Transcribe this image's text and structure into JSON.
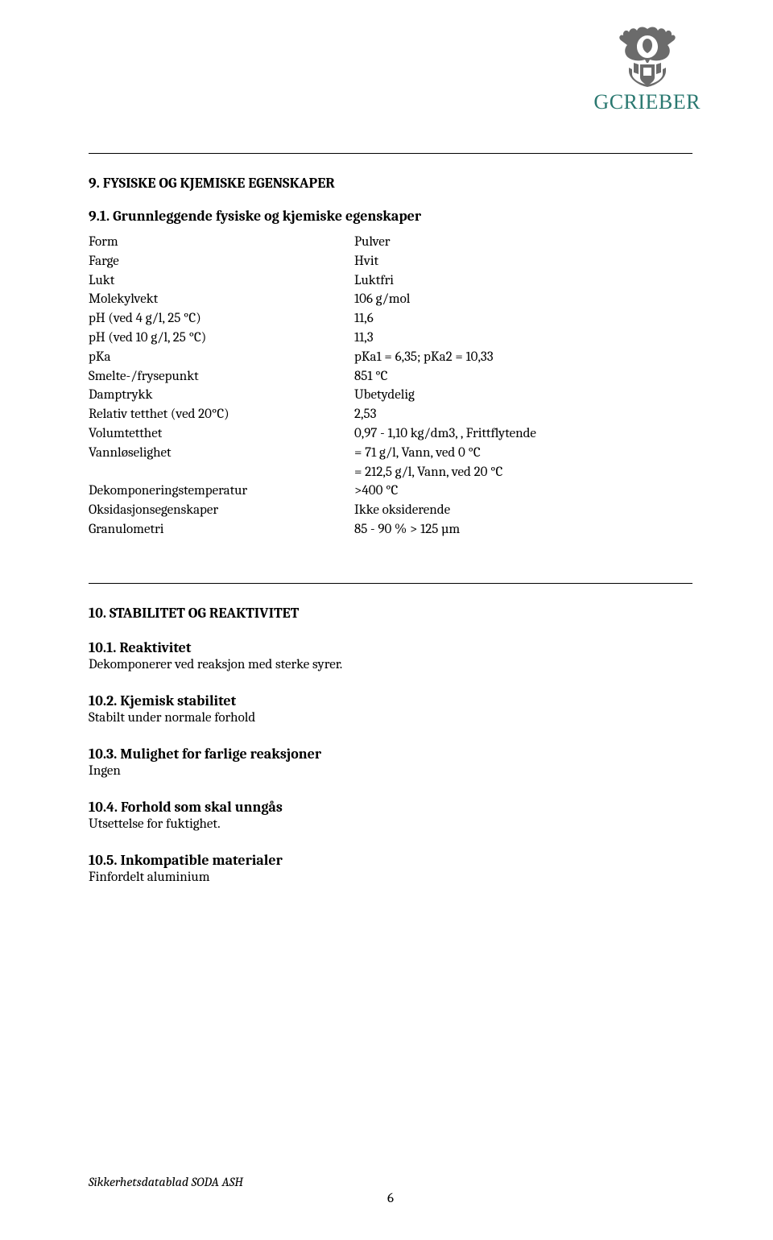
{
  "logo": {
    "crest_color": "#6b6b6b",
    "brand_gc": "GC",
    "brand_rieber": "RIEBER",
    "brand_color": "#2a7870"
  },
  "section9": {
    "heading": "9.    FYSISKE OG KJEMISKE EGENSKAPER",
    "sub": "9.1.    Grunnleggende fysiske og kjemiske egenskaper",
    "rows": [
      {
        "label": "Form",
        "value": "Pulver"
      },
      {
        "label": "Farge",
        "value": "Hvit"
      },
      {
        "label": "Lukt",
        "value": "Luktfri"
      },
      {
        "label": "Molekylvekt",
        "value": "106 g/mol"
      },
      {
        "label": "pH (ved 4 g/l, 25 °C)",
        "value": "11,6"
      },
      {
        "label": "pH (ved 10 g/l, 25 °C)",
        "value": "11,3"
      },
      {
        "label": "pKa",
        "value": "pKa1 = 6,35; pKa2 = 10,33"
      },
      {
        "label": "Smelte-/frysepunkt",
        "value": "851 °C"
      },
      {
        "label": "Damptrykk",
        "value": "Ubetydelig"
      },
      {
        "label": "Relativ tetthet (ved 20°C)",
        "value": "2,53"
      },
      {
        "label": "Volumtetthet",
        "value": "0,97 - 1,10 kg/dm3, , Frittflytende"
      },
      {
        "label": "Vannløselighet",
        "value": "= 71 g/l, Vann, ved 0 °C"
      },
      {
        "label": "",
        "value": "= 212,5 g/l, Vann, ved 20 °C"
      },
      {
        "label": "Dekomponeringstemperatur",
        "value": ">400 °C"
      },
      {
        "label": "Oksidasjonsegenskaper",
        "value": "Ikke oksiderende"
      },
      {
        "label": "Granulometri",
        "value": "85 - 90 % > 125 µm"
      }
    ]
  },
  "section10": {
    "heading": "10. STABILITET OG REAKTIVITET",
    "subs": [
      {
        "tag": "10.1.",
        "title": "Reaktivitet",
        "body": "Dekomponerer ved reaksjon med sterke syrer."
      },
      {
        "tag": "10.2.",
        "title": "Kjemisk stabilitet",
        "body": "Stabilt under normale forhold"
      },
      {
        "tag": "10.3.",
        "title": "Mulighet for farlige reaksjoner",
        "body": "Ingen"
      },
      {
        "tag": "10.4.",
        "title": "Forhold som skal unngås",
        "body": "Utsettelse for fuktighet."
      },
      {
        "tag": "10.5.",
        "title": "Inkompatible materialer",
        "body": "Finfordelt aluminium"
      }
    ]
  },
  "footer": {
    "text": "Sikkerhetsdatablad SODA ASH",
    "page_number": "6"
  }
}
